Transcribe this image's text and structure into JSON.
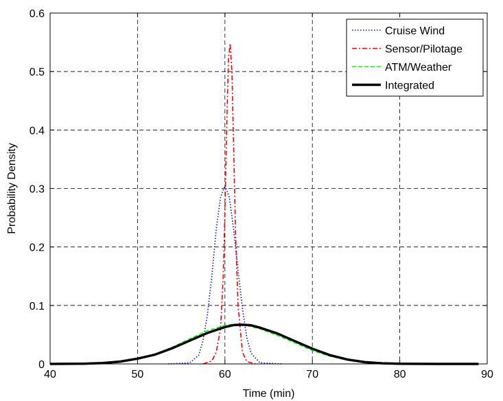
{
  "chart_data": {
    "type": "line",
    "title": "",
    "xlabel": "Time (min)",
    "ylabel": "Probability Density",
    "xlim": [
      40,
      90
    ],
    "ylim": [
      0,
      0.6
    ],
    "xticks": [
      40,
      50,
      60,
      70,
      80,
      90
    ],
    "xtick_labels": [
      "40",
      "50",
      "60",
      "70",
      "80",
      "90"
    ],
    "yticks": [
      0,
      0.1,
      0.2,
      0.3,
      0.4,
      0.5,
      0.6
    ],
    "ytick_labels": [
      "0",
      "0.1",
      "0.2",
      "0.3",
      "0.4",
      "0.5",
      "0.6"
    ],
    "grid": true,
    "legend_position": "top-right",
    "series": [
      {
        "name": "Cruise Wind",
        "color": "#0000ff",
        "style": "dotted",
        "x": [
          53.5,
          56.0,
          57.0,
          57.5,
          58.0,
          58.5,
          59.0,
          59.5,
          60.0,
          60.5,
          61.0,
          61.5,
          62.0,
          62.5,
          63.0,
          64.0,
          66.5
        ],
        "y": [
          0.0,
          0.002,
          0.015,
          0.04,
          0.085,
          0.15,
          0.23,
          0.285,
          0.305,
          0.285,
          0.23,
          0.16,
          0.095,
          0.045,
          0.018,
          0.002,
          0.0
        ]
      },
      {
        "name": "Sensor/Pilotage",
        "color": "#ff0000",
        "style": "dashdot",
        "x": [
          57.5,
          58.5,
          59.0,
          59.5,
          59.8,
          60.0,
          60.2,
          60.4,
          60.6,
          60.8,
          61.0,
          61.2,
          61.5,
          62.0,
          62.5,
          63.5
        ],
        "y": [
          0.0,
          0.005,
          0.02,
          0.06,
          0.15,
          0.26,
          0.4,
          0.52,
          0.548,
          0.5,
          0.37,
          0.23,
          0.1,
          0.02,
          0.004,
          0.0
        ]
      },
      {
        "name": "ATM/Weather",
        "color": "#00ff00",
        "style": "dashed",
        "x": [
          40,
          44,
          46,
          48,
          50,
          52,
          54,
          56,
          58,
          60,
          61,
          62,
          64,
          66,
          68,
          70,
          72,
          74,
          76,
          78,
          80,
          85,
          89
        ],
        "y": [
          0.0,
          0.0005,
          0.001,
          0.003,
          0.008,
          0.016,
          0.029,
          0.043,
          0.057,
          0.066,
          0.068,
          0.067,
          0.06,
          0.049,
          0.036,
          0.023,
          0.013,
          0.0065,
          0.0025,
          0.001,
          0.0003,
          0.0,
          0.0
        ]
      },
      {
        "name": "Integrated",
        "color": "#000000",
        "style": "solid",
        "x": [
          40,
          44,
          46,
          48,
          50,
          52,
          54,
          56,
          58,
          60,
          61,
          62,
          63,
          64,
          66,
          68,
          70,
          72,
          74,
          76,
          78,
          80,
          85,
          89
        ],
        "y": [
          0.0,
          0.0005,
          0.0015,
          0.004,
          0.009,
          0.016,
          0.027,
          0.04,
          0.053,
          0.063,
          0.0665,
          0.067,
          0.066,
          0.062,
          0.052,
          0.039,
          0.026,
          0.015,
          0.0075,
          0.003,
          0.001,
          0.0003,
          0.0,
          0.0
        ]
      }
    ]
  }
}
